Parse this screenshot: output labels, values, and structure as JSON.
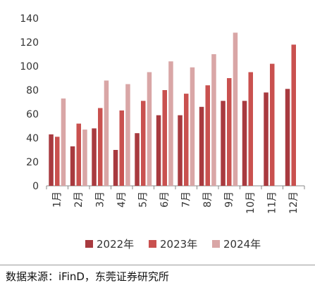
{
  "chart_data": {
    "type": "bar",
    "title": "",
    "xlabel": "",
    "ylabel": "",
    "categories": [
      "1月",
      "2月",
      "3月",
      "4月",
      "5月",
      "6月",
      "7月",
      "8月",
      "9月",
      "10月",
      "11月",
      "12月"
    ],
    "series": [
      {
        "name": "2022年",
        "color": "#a83a3f",
        "values": [
          43,
          33,
          48,
          30,
          44,
          59,
          59,
          66,
          71,
          71,
          78,
          81
        ]
      },
      {
        "name": "2023年",
        "color": "#c9514f",
        "values": [
          41,
          52,
          65,
          63,
          71,
          80,
          77,
          84,
          90,
          95,
          102,
          118
        ]
      },
      {
        "name": "2024年",
        "color": "#d9a6a6",
        "values": [
          73,
          47,
          88,
          85,
          95,
          104,
          99,
          110,
          128,
          null,
          null,
          null
        ]
      }
    ],
    "yticks": [
      "0",
      "20",
      "40",
      "60",
      "80",
      "100",
      "120",
      "140"
    ],
    "ylim": [
      0,
      140
    ],
    "grid": false,
    "legend": "bottom"
  },
  "source": "数据来源：iFinD，东莞证券研究所"
}
